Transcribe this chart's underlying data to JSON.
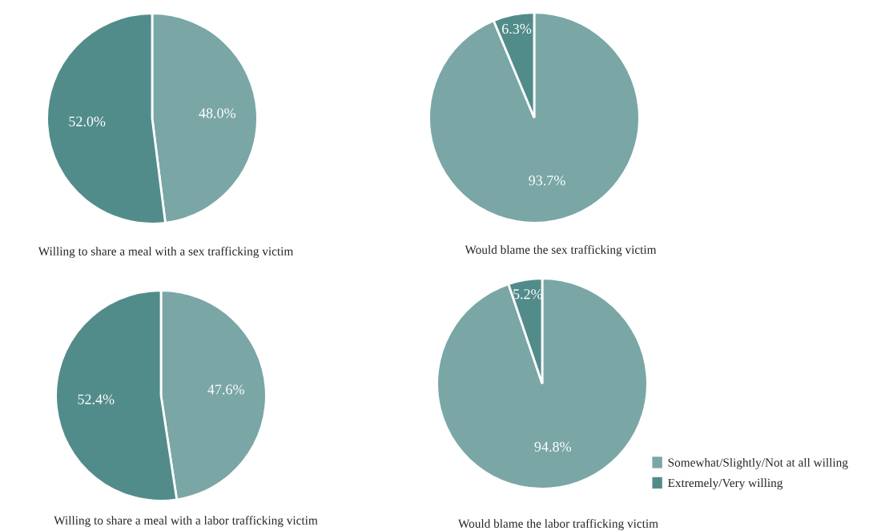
{
  "chart_data": [
    {
      "type": "pie",
      "title": "Willing to share a meal with a sex trafficking victim",
      "categories": [
        null,
        null
      ],
      "values": [
        48.0,
        52.0
      ],
      "colors": [
        "#7aa6a6",
        "#528c8a"
      ],
      "value_labels": [
        "48.0%",
        "52.0%"
      ],
      "legend": false
    },
    {
      "type": "pie",
      "title": "Would blame the sex trafficking victim",
      "categories": [
        null,
        null
      ],
      "values": [
        93.7,
        6.3
      ],
      "colors": [
        "#7aa6a6",
        "#528c8a"
      ],
      "value_labels": [
        "93.7%",
        "6.3%"
      ],
      "legend": false
    },
    {
      "type": "pie",
      "title": "Willing to share a meal with a labor trafficking victim",
      "categories": [
        null,
        null
      ],
      "values": [
        47.6,
        52.4
      ],
      "colors": [
        "#7aa6a6",
        "#528c8a"
      ],
      "value_labels": [
        "47.6%",
        "52.4%"
      ],
      "legend": false
    },
    {
      "type": "pie",
      "title": "Would blame the labor trafficking victim",
      "categories": [
        "Somewhat/Slightly/Not at all willing",
        "Extremely/Very willing"
      ],
      "values": [
        94.8,
        5.2
      ],
      "colors": [
        "#7aa6a6",
        "#528c8a"
      ],
      "value_labels": [
        "94.8%",
        "5.2%"
      ],
      "legend": "bottom right"
    }
  ]
}
